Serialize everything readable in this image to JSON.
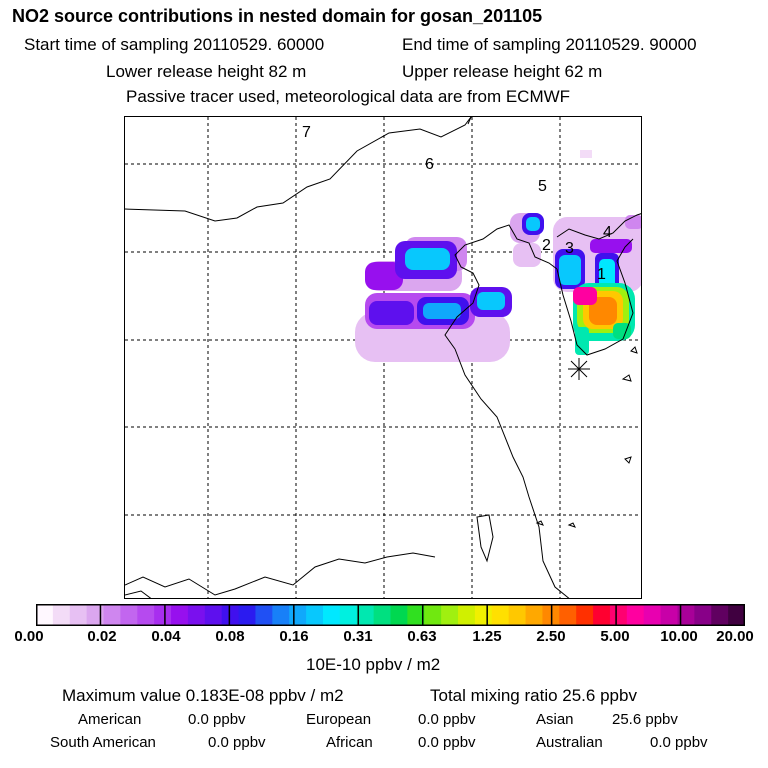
{
  "header": {
    "title": "NO2 source contributions in nested domain for gosan_201105",
    "start_label": "Start time of sampling 20110529. 60000",
    "end_label": "End time of sampling 20110529. 90000",
    "lower_label": "Lower release height   82 m",
    "upper_label": "Upper release height   62 m",
    "tracer_label": "Passive tracer used, meteorological data are from ECMWF"
  },
  "chart_data": {
    "type": "heatmap",
    "title": "NO2 source contributions in nested domain for gosan_201105",
    "colorbar": {
      "tick_labels": [
        "0.00",
        "0.02",
        "0.04",
        "0.08",
        "0.16",
        "0.31",
        "0.63",
        "1.25",
        "2.50",
        "5.00",
        "10.00",
        "20.00"
      ],
      "unit": "10E-10 ppbv / m2",
      "colors": [
        "#fff8ff",
        "#f3dcf7",
        "#e7c0f3",
        "#dba6ef",
        "#cf86ef",
        "#c266ef",
        "#b64aef",
        "#a82eef",
        "#9710ee",
        "#7a10ee",
        "#5e10ee",
        "#4010ee",
        "#2b1bf0",
        "#2050f4",
        "#1880f8",
        "#10a8fb",
        "#08c8fd",
        "#00e8ff",
        "#00f0e0",
        "#00e8b0",
        "#00e080",
        "#00d850",
        "#30e020",
        "#70e810",
        "#a0f010",
        "#d0f000",
        "#f0f000",
        "#ffe000",
        "#ffc800",
        "#ffa800",
        "#ff8800",
        "#ff6000",
        "#ff3000",
        "#ff0030",
        "#ff0070",
        "#ff00a0",
        "#e800b0",
        "#c800a8",
        "#a80098",
        "#880088",
        "#600060",
        "#400040"
      ]
    },
    "trajectory_labels": [
      "7",
      "6",
      "5",
      "4",
      "3",
      "2",
      "1"
    ],
    "receptor": "gosan"
  },
  "stats": {
    "maximum": "Maximum value  0.183E-08 ppbv / m2",
    "total": "Total mixing ratio       25.6 ppbv"
  },
  "regions": {
    "american_label": "American",
    "american_value": "0.0 ppbv",
    "european_label": "European",
    "european_value": "0.0 ppbv",
    "asian_label": "Asian",
    "asian_value": "25.6 ppbv",
    "south_american_label": "South American",
    "south_american_value": "0.0 ppbv",
    "african_label": "African",
    "african_value": "0.0 ppbv",
    "australian_label": "Australian",
    "australian_value": "0.0 ppbv"
  }
}
